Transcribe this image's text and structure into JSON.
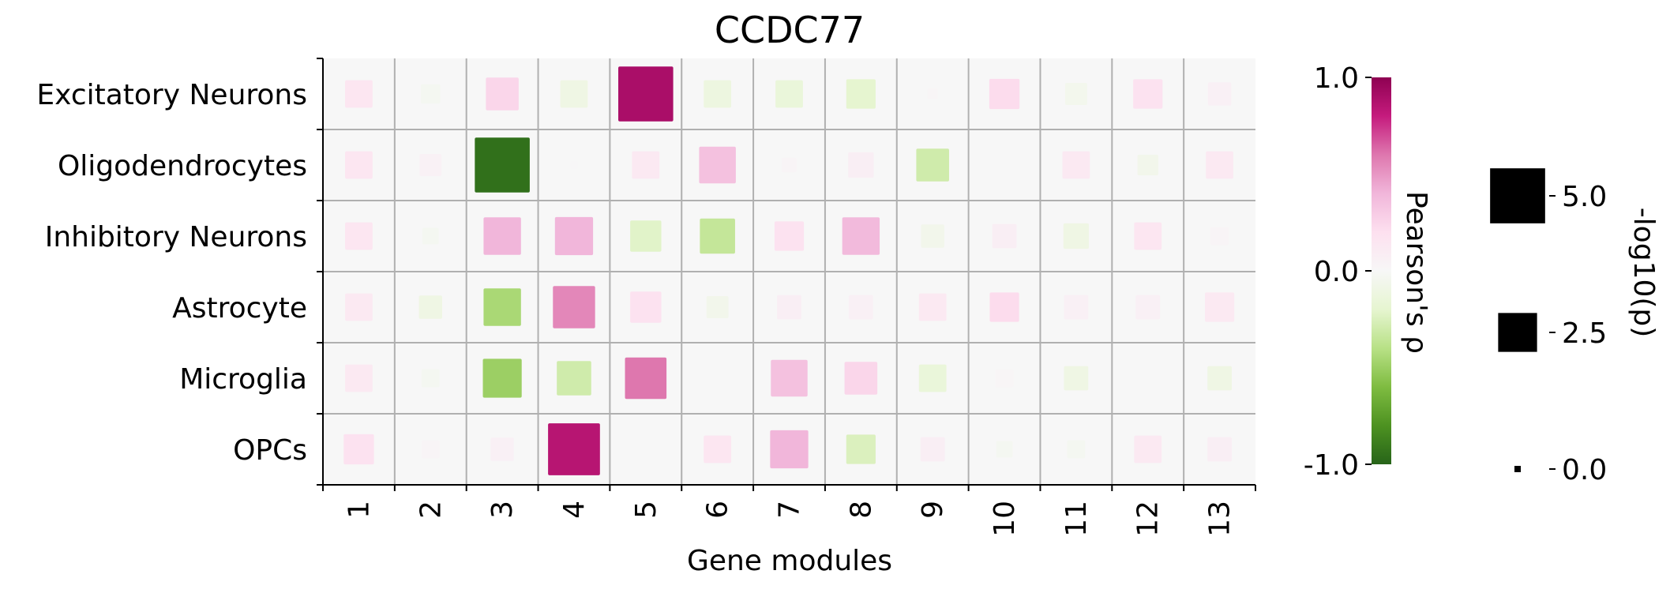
{
  "chart_data": {
    "type": "heatmap",
    "title": "CCDC77",
    "xlabel": "Gene modules",
    "ylabel": "",
    "columns": [
      "1",
      "2",
      "3",
      "4",
      "5",
      "6",
      "7",
      "8",
      "9",
      "10",
      "11",
      "12",
      "13"
    ],
    "rows": [
      "Excitatory Neurons",
      "Oligodendrocytes",
      "Inhibitory Neurons",
      "Astrocyte",
      "Microglia",
      "OPCs"
    ],
    "rho": [
      [
        0.15,
        -0.03,
        0.25,
        -0.1,
        0.9,
        -0.12,
        -0.15,
        -0.2,
        0.02,
        0.22,
        -0.05,
        0.18,
        0.06
      ],
      [
        0.15,
        0.05,
        -0.95,
        0.01,
        0.12,
        0.35,
        0.03,
        0.08,
        -0.3,
        0.0,
        0.12,
        -0.06,
        0.12
      ],
      [
        0.15,
        -0.03,
        0.4,
        0.4,
        -0.22,
        -0.35,
        0.18,
        0.38,
        -0.06,
        0.08,
        -0.1,
        0.15,
        0.03
      ],
      [
        0.12,
        -0.1,
        -0.45,
        0.55,
        0.18,
        -0.06,
        0.08,
        0.06,
        0.12,
        0.22,
        0.06,
        0.06,
        0.12
      ],
      [
        0.12,
        -0.03,
        -0.5,
        -0.3,
        0.6,
        0.0,
        0.35,
        0.25,
        -0.15,
        0.02,
        -0.1,
        0.0,
        -0.1
      ],
      [
        0.18,
        0.03,
        0.06,
        0.85,
        0.0,
        0.15,
        0.4,
        -0.25,
        0.08,
        -0.03,
        -0.03,
        0.12,
        0.08
      ]
    ],
    "neg_log10_p": [
      [
        1.4,
        0.7,
        2.0,
        1.4,
        5.6,
        1.4,
        1.4,
        1.6,
        0.2,
        1.7,
        0.9,
        1.6,
        1.0
      ],
      [
        1.4,
        0.9,
        5.6,
        0.1,
        1.4,
        2.5,
        0.4,
        1.2,
        2.0,
        0.0,
        1.4,
        0.8,
        1.4
      ],
      [
        1.4,
        0.5,
        2.6,
        2.7,
        1.8,
        2.3,
        1.6,
        2.6,
        1.0,
        1.1,
        1.2,
        1.4,
        0.6
      ],
      [
        1.4,
        1.0,
        2.6,
        3.3,
        1.8,
        0.9,
        1.1,
        1.1,
        1.4,
        1.6,
        1.1,
        1.1,
        1.6
      ],
      [
        1.4,
        0.6,
        2.8,
        2.2,
        3.2,
        0.2,
        2.5,
        2.0,
        1.4,
        0.6,
        1.1,
        0.1,
        1.1
      ],
      [
        1.7,
        0.6,
        1.0,
        5.0,
        0.0,
        1.4,
        2.7,
        1.6,
        1.1,
        0.5,
        0.6,
        1.4,
        1.1
      ]
    ],
    "colorbar": {
      "label": "Pearson's ρ",
      "ticks": [
        "1.0",
        "0.0",
        "-1.0"
      ],
      "colors": [
        "#8e0152",
        "#c51b7d",
        "#de77ae",
        "#f1b6da",
        "#fde0ef",
        "#f7f7f7",
        "#e6f5d0",
        "#b8e186",
        "#7fbc41",
        "#4d9221",
        "#276419"
      ]
    },
    "size_legend": {
      "label": "-log10(p)",
      "entries": [
        {
          "label": "5.0",
          "value": 5.0
        },
        {
          "label": "2.5",
          "value": 2.5
        },
        {
          "label": "0.0",
          "value": 0.0
        }
      ]
    },
    "grid": true,
    "background": "#f7f7f7"
  }
}
